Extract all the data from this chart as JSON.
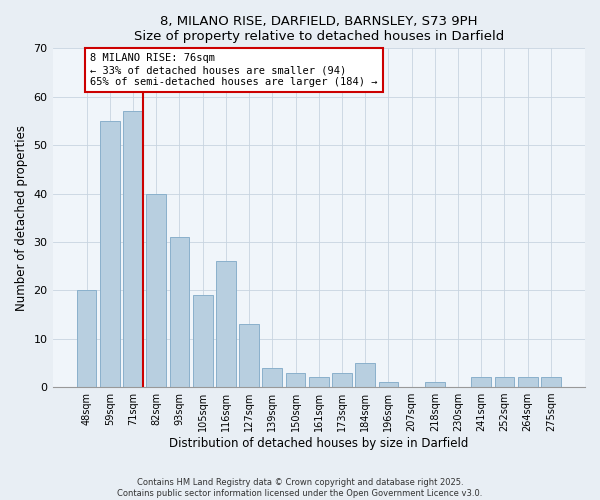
{
  "title1": "8, MILANO RISE, DARFIELD, BARNSLEY, S73 9PH",
  "title2": "Size of property relative to detached houses in Darfield",
  "xlabel": "Distribution of detached houses by size in Darfield",
  "ylabel": "Number of detached properties",
  "categories": [
    "48sqm",
    "59sqm",
    "71sqm",
    "82sqm",
    "93sqm",
    "105sqm",
    "116sqm",
    "127sqm",
    "139sqm",
    "150sqm",
    "161sqm",
    "173sqm",
    "184sqm",
    "196sqm",
    "207sqm",
    "218sqm",
    "230sqm",
    "241sqm",
    "252sqm",
    "264sqm",
    "275sqm"
  ],
  "values": [
    20,
    55,
    57,
    40,
    31,
    19,
    26,
    13,
    4,
    3,
    2,
    3,
    5,
    1,
    0,
    1,
    0,
    2,
    2,
    2,
    2
  ],
  "bar_color": "#b8cfe0",
  "bar_edge_color": "#8ab0cc",
  "vline_x_index": 2,
  "vline_color": "#cc0000",
  "annotation_line1": "8 MILANO RISE: 76sqm",
  "annotation_line2": "← 33% of detached houses are smaller (94)",
  "annotation_line3": "65% of semi-detached houses are larger (184) →",
  "annotation_box_color": "#ffffff",
  "annotation_box_edge": "#cc0000",
  "ylim": [
    0,
    70
  ],
  "yticks": [
    0,
    10,
    20,
    30,
    40,
    50,
    60,
    70
  ],
  "footer1": "Contains HM Land Registry data © Crown copyright and database right 2025.",
  "footer2": "Contains public sector information licensed under the Open Government Licence v3.0.",
  "background_color": "#e8eef4",
  "plot_bg_color": "#f0f5fa",
  "grid_color": "#c8d4e0"
}
